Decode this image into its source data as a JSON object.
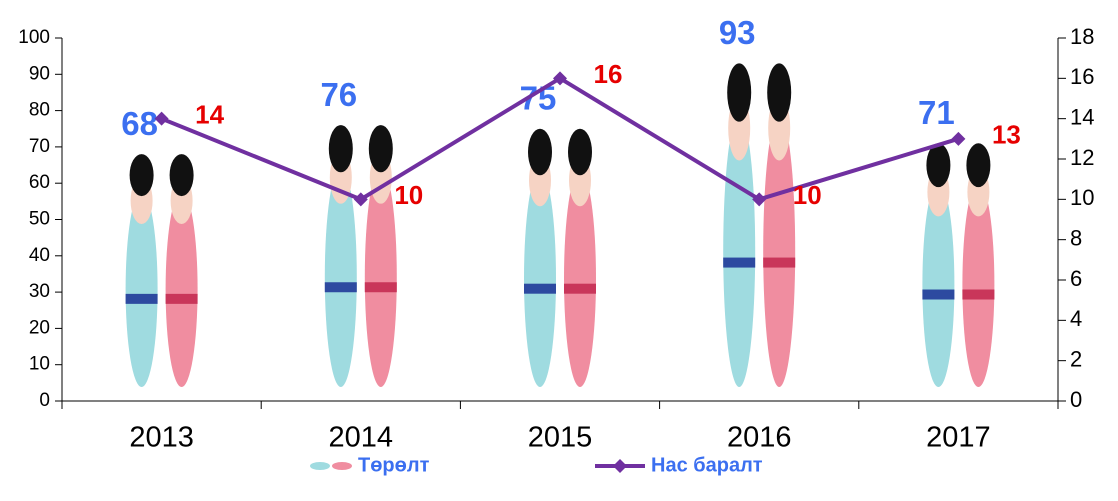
{
  "chart_data": {
    "type": "bar",
    "categories": [
      "2013",
      "2014",
      "2015",
      "2016",
      "2017"
    ],
    "series": [
      {
        "name": "Төрөлт",
        "type": "bar",
        "color": "#9fdbe0",
        "values": [
          68,
          76,
          75,
          93,
          71
        ]
      },
      {
        "name": "Нас баралт",
        "type": "line",
        "axis": "y2",
        "color": "#7030a0",
        "values": [
          14,
          10,
          16,
          10,
          13
        ]
      }
    ],
    "ylim": [
      0,
      100
    ],
    "yticks": [
      0,
      10,
      20,
      30,
      40,
      50,
      60,
      70,
      80,
      90,
      100
    ],
    "y2lim": [
      0,
      18
    ],
    "y2ticks": [
      0,
      2,
      4,
      6,
      8,
      10,
      12,
      14,
      16,
      18
    ],
    "legend": "bottom"
  }
}
